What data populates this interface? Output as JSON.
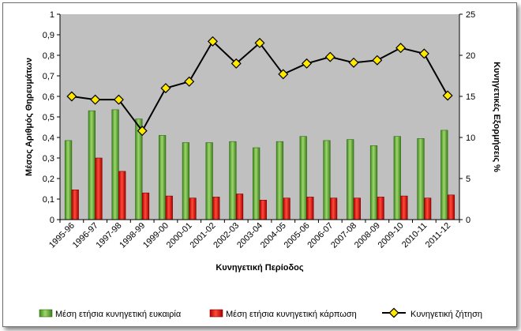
{
  "chart_data": {
    "type": "bar",
    "title": "",
    "xlabel": "Κυνηγετική Περίοδος",
    "ylabel": "Μέσος Αριθμός Θηρευμάτων",
    "y2label": "Κυνηγετικές Εξορμήσεις %",
    "ylim": [
      0,
      1
    ],
    "y2lim": [
      0,
      25
    ],
    "yticks": [
      "0",
      "0,1",
      "0,2",
      "0,3",
      "0,4",
      "0,5",
      "0,6",
      "0,7",
      "0,8",
      "0,9",
      "1"
    ],
    "y2ticks": [
      "0",
      "5",
      "10",
      "15",
      "20",
      "25"
    ],
    "grid": false,
    "legend": "bottom",
    "categories": [
      "1995-96",
      "1996-97",
      "1997-98",
      "1998-99",
      "1999-00",
      "2000-01",
      "2001-02",
      "2002-03",
      "2003-04",
      "2004-05",
      "2005-06",
      "2006-07",
      "2007-08",
      "2008-09",
      "2009-10",
      "2010-11",
      "2011-12"
    ],
    "series": [
      {
        "name": "Μέση ετήσια κυνηγετική ευκαιρία",
        "type": "bar",
        "axis": "left",
        "color": "#4e9a2a",
        "values": [
          0.385,
          0.53,
          0.535,
          0.49,
          0.41,
          0.375,
          0.375,
          0.38,
          0.35,
          0.38,
          0.405,
          0.385,
          0.39,
          0.36,
          0.405,
          0.395,
          0.435
        ]
      },
      {
        "name": "Μέση ετήσια κυνηγετική κάρπωση",
        "type": "bar",
        "axis": "left",
        "color": "#d41010",
        "values": [
          0.145,
          0.3,
          0.235,
          0.13,
          0.115,
          0.105,
          0.11,
          0.125,
          0.095,
          0.105,
          0.11,
          0.105,
          0.105,
          0.11,
          0.115,
          0.105,
          0.12
        ]
      },
      {
        "name": "Κυνηγετική ζήτηση",
        "type": "line",
        "axis": "right",
        "color": "#000000",
        "marker_color": "#ffe800",
        "values": [
          15.0,
          14.6,
          14.6,
          10.8,
          16.0,
          16.8,
          21.7,
          19.0,
          21.5,
          17.7,
          19.0,
          19.8,
          19.1,
          19.4,
          20.9,
          20.2,
          15.1
        ]
      }
    ]
  }
}
